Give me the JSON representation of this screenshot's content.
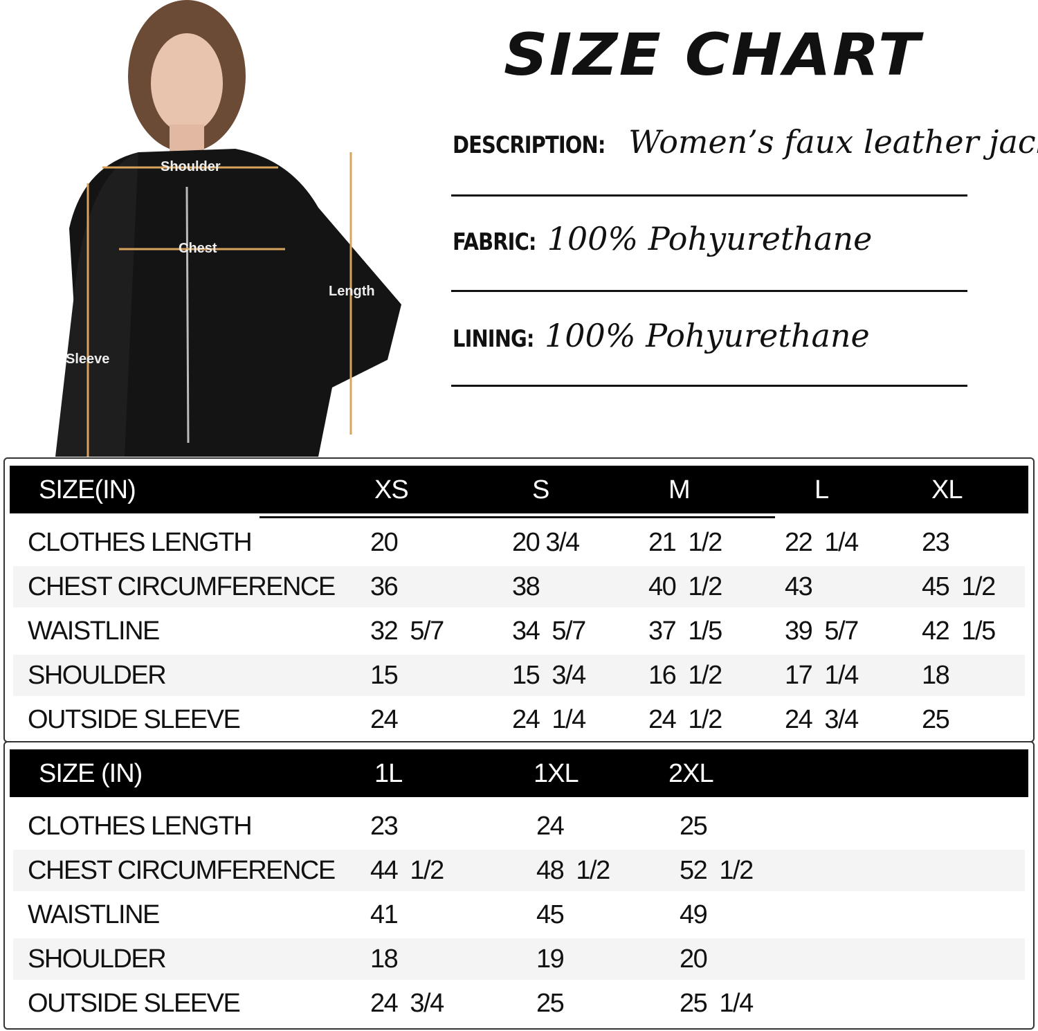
{
  "title": "SIZE CHART",
  "specs": [
    {
      "label": "DESCRIPTION:",
      "value": "Women’s faux leather jacket"
    },
    {
      "label": "FABRIC:",
      "value": "100%  Pohyurethane"
    },
    {
      "label": "LINING:",
      "value": "100%  Pohyurethane"
    }
  ],
  "photo": {
    "labels": {
      "shoulder": "Shoulder",
      "chest": "Chest",
      "length": "Length",
      "sleeve": "Sleeve"
    },
    "measure_line_color": "#d9a35c"
  },
  "table1": {
    "header": [
      "SIZE(IN)",
      "XS",
      "S",
      "M",
      "L",
      "XL"
    ],
    "rows": [
      {
        "label": "CLOTHES LENGTH",
        "values": [
          "20",
          "20 3/4",
          "21  1/2",
          "22  1/4",
          "23"
        ]
      },
      {
        "label": "CHEST CIRCUMFERENCE",
        "values": [
          "36",
          "38",
          "40  1/2",
          "43",
          "45  1/2"
        ]
      },
      {
        "label": "WAISTLINE",
        "values": [
          "32  5/7",
          "34  5/7",
          "37  1/5",
          "39  5/7",
          "42  1/5"
        ]
      },
      {
        "label": "SHOULDER",
        "values": [
          "15",
          "15  3/4",
          "16  1/2",
          "17  1/4",
          "18"
        ]
      },
      {
        "label": "OUTSIDE SLEEVE",
        "values": [
          "24",
          "24  1/4",
          "24  1/2",
          "24  3/4",
          "25"
        ]
      }
    ]
  },
  "table2": {
    "header": [
      "SIZE   (IN)",
      "1L",
      "1XL",
      "2XL"
    ],
    "rows": [
      {
        "label": "CLOTHES LENGTH",
        "values": [
          "23",
          "24",
          "25"
        ]
      },
      {
        "label": "CHEST CIRCUMFERENCE",
        "values": [
          "44  1/2",
          "48  1/2",
          "52  1/2"
        ]
      },
      {
        "label": "WAISTLINE",
        "values": [
          "41",
          "45",
          "49"
        ]
      },
      {
        "label": "SHOULDER",
        "values": [
          "18",
          "19",
          "20"
        ]
      },
      {
        "label": "OUTSIDE SLEEVE",
        "values": [
          "24  3/4",
          "25",
          "25  1/4"
        ]
      }
    ]
  }
}
